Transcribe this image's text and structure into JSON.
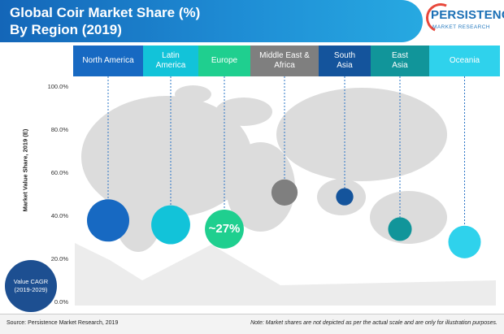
{
  "title_line1": "Global Coir Market Share (%)",
  "title_line2": "By Region (2019)",
  "logo": {
    "main": "PERSISTENCE",
    "sub": "MARKET RESEARCH"
  },
  "cagr_label": "Value CAGR\n(2019-2029)",
  "footer": {
    "source": "Source: Persistence Market Research, 2019",
    "note": "Note: Market shares are not depicted as per the actual scale and are only for illustration purposes."
  },
  "colors": {
    "north_america": "#1769c2",
    "latin_america": "#12c3d9",
    "europe": "#1fcf8f",
    "middle_east_africa": "#7f7f7f",
    "south_asia": "#14549c",
    "east_asia": "#11959a",
    "oceania": "#2fd2ec"
  },
  "chart_data": {
    "type": "scatter",
    "ylabel": "Market Value Share, 2019 (E)",
    "ylim": [
      0,
      100
    ],
    "yticks": [
      "0.0%",
      "20.0%",
      "40.0%",
      "60.0%",
      "80.0%",
      "100.0%"
    ],
    "grid": false,
    "categories": [
      "North America",
      "Latin\nAmerica",
      "Europe",
      "Middle East &\nAfrica",
      "South\nAsia",
      "East\nAsia",
      "Oceania"
    ],
    "series": [
      {
        "name": "North America",
        "value": 38,
        "size": 1.0,
        "label": ""
      },
      {
        "name": "Latin\nAmerica",
        "value": 36,
        "size": 0.92,
        "label": ""
      },
      {
        "name": "Europe",
        "value": 34,
        "size": 0.92,
        "label": "~27%"
      },
      {
        "name": "Middle East &\nAfrica",
        "value": 51,
        "size": 0.62,
        "label": ""
      },
      {
        "name": "South\nAsia",
        "value": 49,
        "size": 0.41,
        "label": ""
      },
      {
        "name": "East\nAsia",
        "value": 34,
        "size": 0.56,
        "label": ""
      },
      {
        "name": "Oceania",
        "value": 28,
        "size": 0.77,
        "label": ""
      }
    ]
  }
}
